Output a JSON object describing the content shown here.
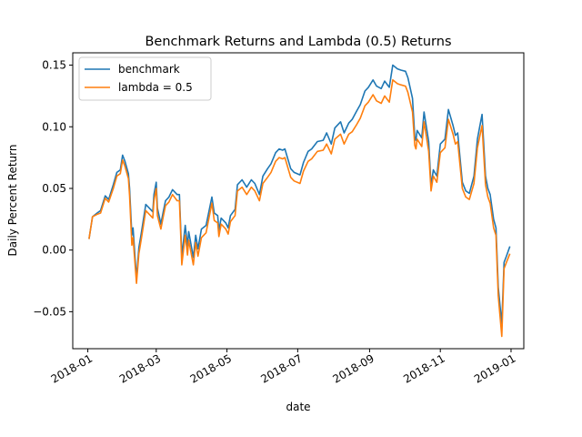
{
  "chart_data": {
    "type": "line",
    "title": "Benchmark Returns and Lambda (0.5) Returns",
    "xlabel": "date",
    "ylabel": "Daily Percent Return",
    "xlim": [
      "2017-12-19",
      "2019-01-12"
    ],
    "ylim": [
      -0.08,
      0.16
    ],
    "x_ticks": [
      {
        "label": "2018-01",
        "date": "2018-01-01"
      },
      {
        "label": "2018-03",
        "date": "2018-03-01"
      },
      {
        "label": "2018-05",
        "date": "2018-05-01"
      },
      {
        "label": "2018-07",
        "date": "2018-07-01"
      },
      {
        "label": "2018-09",
        "date": "2018-09-01"
      },
      {
        "label": "2018-11",
        "date": "2018-11-01"
      },
      {
        "label": "2019-01",
        "date": "2019-01-01"
      }
    ],
    "y_ticks": [
      {
        "label": "−0.05",
        "value": -0.05
      },
      {
        "label": "0.00",
        "value": 0.0
      },
      {
        "label": "0.05",
        "value": 0.05
      },
      {
        "label": "0.10",
        "value": 0.1
      },
      {
        "label": "0.15",
        "value": 0.15
      }
    ],
    "grid": false,
    "legend_position": "top-left",
    "series": [
      {
        "name": "benchmark",
        "color": "#1f77b4",
        "points": [
          [
            "2018-01-02",
            0.009
          ],
          [
            "2018-01-05",
            0.027
          ],
          [
            "2018-01-09",
            0.03
          ],
          [
            "2018-01-12",
            0.032
          ],
          [
            "2018-01-16",
            0.044
          ],
          [
            "2018-01-19",
            0.041
          ],
          [
            "2018-01-23",
            0.053
          ],
          [
            "2018-01-26",
            0.063
          ],
          [
            "2018-01-29",
            0.065
          ],
          [
            "2018-01-31",
            0.077
          ],
          [
            "2018-02-02",
            0.072
          ],
          [
            "2018-02-05",
            0.062
          ],
          [
            "2018-02-06",
            0.05
          ],
          [
            "2018-02-08",
            0.012
          ],
          [
            "2018-02-09",
            0.018
          ],
          [
            "2018-02-12",
            -0.023
          ],
          [
            "2018-02-14",
            0.002
          ],
          [
            "2018-02-16",
            0.013
          ],
          [
            "2018-02-20",
            0.037
          ],
          [
            "2018-02-23",
            0.034
          ],
          [
            "2018-02-26",
            0.031
          ],
          [
            "2018-02-27",
            0.045
          ],
          [
            "2018-03-01",
            0.055
          ],
          [
            "2018-03-02",
            0.034
          ],
          [
            "2018-03-05",
            0.021
          ],
          [
            "2018-03-07",
            0.031
          ],
          [
            "2018-03-09",
            0.04
          ],
          [
            "2018-03-12",
            0.043
          ],
          [
            "2018-03-15",
            0.049
          ],
          [
            "2018-03-19",
            0.045
          ],
          [
            "2018-03-21",
            0.045
          ],
          [
            "2018-03-22",
            0.02
          ],
          [
            "2018-03-23",
            -0.005
          ],
          [
            "2018-03-26",
            0.02
          ],
          [
            "2018-03-28",
            0.003
          ],
          [
            "2018-03-29",
            0.015
          ],
          [
            "2018-04-02",
            -0.006
          ],
          [
            "2018-04-04",
            0.012
          ],
          [
            "2018-04-06",
            0.001
          ],
          [
            "2018-04-09",
            0.017
          ],
          [
            "2018-04-13",
            0.02
          ],
          [
            "2018-04-18",
            0.043
          ],
          [
            "2018-04-20",
            0.03
          ],
          [
            "2018-04-23",
            0.028
          ],
          [
            "2018-04-24",
            0.016
          ],
          [
            "2018-04-26",
            0.026
          ],
          [
            "2018-04-30",
            0.022
          ],
          [
            "2018-05-02",
            0.018
          ],
          [
            "2018-05-04",
            0.028
          ],
          [
            "2018-05-08",
            0.033
          ],
          [
            "2018-05-10",
            0.053
          ],
          [
            "2018-05-14",
            0.057
          ],
          [
            "2018-05-18",
            0.051
          ],
          [
            "2018-05-22",
            0.057
          ],
          [
            "2018-05-25",
            0.054
          ],
          [
            "2018-05-29",
            0.045
          ],
          [
            "2018-06-01",
            0.06
          ],
          [
            "2018-06-05",
            0.066
          ],
          [
            "2018-06-08",
            0.07
          ],
          [
            "2018-06-12",
            0.079
          ],
          [
            "2018-06-15",
            0.082
          ],
          [
            "2018-06-18",
            0.081
          ],
          [
            "2018-06-20",
            0.082
          ],
          [
            "2018-06-25",
            0.066
          ],
          [
            "2018-06-28",
            0.063
          ],
          [
            "2018-07-03",
            0.061
          ],
          [
            "2018-07-06",
            0.071
          ],
          [
            "2018-07-10",
            0.08
          ],
          [
            "2018-07-13",
            0.082
          ],
          [
            "2018-07-18",
            0.088
          ],
          [
            "2018-07-23",
            0.089
          ],
          [
            "2018-07-26",
            0.095
          ],
          [
            "2018-07-30",
            0.086
          ],
          [
            "2018-08-02",
            0.099
          ],
          [
            "2018-08-07",
            0.104
          ],
          [
            "2018-08-10",
            0.095
          ],
          [
            "2018-08-14",
            0.103
          ],
          [
            "2018-08-17",
            0.106
          ],
          [
            "2018-08-21",
            0.113
          ],
          [
            "2018-08-24",
            0.118
          ],
          [
            "2018-08-28",
            0.129
          ],
          [
            "2018-08-31",
            0.132
          ],
          [
            "2018-09-04",
            0.138
          ],
          [
            "2018-09-07",
            0.133
          ],
          [
            "2018-09-11",
            0.131
          ],
          [
            "2018-09-14",
            0.137
          ],
          [
            "2018-09-18",
            0.132
          ],
          [
            "2018-09-21",
            0.15
          ],
          [
            "2018-09-25",
            0.147
          ],
          [
            "2018-09-28",
            0.146
          ],
          [
            "2018-10-02",
            0.145
          ],
          [
            "2018-10-04",
            0.14
          ],
          [
            "2018-10-08",
            0.123
          ],
          [
            "2018-10-10",
            0.092
          ],
          [
            "2018-10-11",
            0.089
          ],
          [
            "2018-10-12",
            0.097
          ],
          [
            "2018-10-16",
            0.091
          ],
          [
            "2018-10-18",
            0.112
          ],
          [
            "2018-10-22",
            0.088
          ],
          [
            "2018-10-24",
            0.052
          ],
          [
            "2018-10-26",
            0.065
          ],
          [
            "2018-10-29",
            0.06
          ],
          [
            "2018-11-01",
            0.086
          ],
          [
            "2018-11-05",
            0.09
          ],
          [
            "2018-11-08",
            0.114
          ],
          [
            "2018-11-12",
            0.101
          ],
          [
            "2018-11-14",
            0.093
          ],
          [
            "2018-11-16",
            0.095
          ],
          [
            "2018-11-20",
            0.055
          ],
          [
            "2018-11-23",
            0.048
          ],
          [
            "2018-11-26",
            0.046
          ],
          [
            "2018-11-30",
            0.06
          ],
          [
            "2018-12-03",
            0.09
          ],
          [
            "2018-12-05",
            0.1
          ],
          [
            "2018-12-07",
            0.11
          ],
          [
            "2018-12-10",
            0.06
          ],
          [
            "2018-12-12",
            0.05
          ],
          [
            "2018-12-14",
            0.045
          ],
          [
            "2018-12-17",
            0.025
          ],
          [
            "2018-12-19",
            0.018
          ],
          [
            "2018-12-21",
            -0.03
          ],
          [
            "2018-12-24",
            -0.06
          ],
          [
            "2018-12-26",
            -0.01
          ],
          [
            "2018-12-28",
            -0.005
          ],
          [
            "2018-12-31",
            0.003
          ]
        ]
      },
      {
        "name": "lambda = 0.5",
        "color": "#ff7f0e",
        "points": [
          [
            "2018-01-02",
            0.009
          ],
          [
            "2018-01-05",
            0.027
          ],
          [
            "2018-01-09",
            0.029
          ],
          [
            "2018-01-12",
            0.03
          ],
          [
            "2018-01-16",
            0.042
          ],
          [
            "2018-01-19",
            0.039
          ],
          [
            "2018-01-23",
            0.05
          ],
          [
            "2018-01-26",
            0.06
          ],
          [
            "2018-01-29",
            0.062
          ],
          [
            "2018-01-31",
            0.073
          ],
          [
            "2018-02-02",
            0.068
          ],
          [
            "2018-02-05",
            0.058
          ],
          [
            "2018-02-06",
            0.044
          ],
          [
            "2018-02-08",
            0.004
          ],
          [
            "2018-02-09",
            0.01
          ],
          [
            "2018-02-12",
            -0.027
          ],
          [
            "2018-02-14",
            -0.003
          ],
          [
            "2018-02-16",
            0.008
          ],
          [
            "2018-02-20",
            0.032
          ],
          [
            "2018-02-23",
            0.029
          ],
          [
            "2018-02-26",
            0.026
          ],
          [
            "2018-02-27",
            0.04
          ],
          [
            "2018-03-01",
            0.05
          ],
          [
            "2018-03-02",
            0.028
          ],
          [
            "2018-03-05",
            0.017
          ],
          [
            "2018-03-07",
            0.027
          ],
          [
            "2018-03-09",
            0.036
          ],
          [
            "2018-03-12",
            0.039
          ],
          [
            "2018-03-15",
            0.045
          ],
          [
            "2018-03-19",
            0.04
          ],
          [
            "2018-03-21",
            0.04
          ],
          [
            "2018-03-22",
            0.015
          ],
          [
            "2018-03-23",
            -0.012
          ],
          [
            "2018-03-26",
            0.012
          ],
          [
            "2018-03-28",
            -0.004
          ],
          [
            "2018-03-29",
            0.008
          ],
          [
            "2018-04-02",
            -0.012
          ],
          [
            "2018-04-04",
            0.006
          ],
          [
            "2018-04-06",
            -0.005
          ],
          [
            "2018-04-09",
            0.01
          ],
          [
            "2018-04-13",
            0.014
          ],
          [
            "2018-04-18",
            0.038
          ],
          [
            "2018-04-20",
            0.024
          ],
          [
            "2018-04-23",
            0.022
          ],
          [
            "2018-04-24",
            0.011
          ],
          [
            "2018-04-26",
            0.021
          ],
          [
            "2018-04-30",
            0.017
          ],
          [
            "2018-05-02",
            0.013
          ],
          [
            "2018-05-04",
            0.023
          ],
          [
            "2018-05-08",
            0.028
          ],
          [
            "2018-05-10",
            0.048
          ],
          [
            "2018-05-14",
            0.051
          ],
          [
            "2018-05-18",
            0.045
          ],
          [
            "2018-05-22",
            0.051
          ],
          [
            "2018-05-25",
            0.048
          ],
          [
            "2018-05-29",
            0.04
          ],
          [
            "2018-06-01",
            0.054
          ],
          [
            "2018-06-05",
            0.059
          ],
          [
            "2018-06-08",
            0.063
          ],
          [
            "2018-06-12",
            0.072
          ],
          [
            "2018-06-15",
            0.075
          ],
          [
            "2018-06-18",
            0.074
          ],
          [
            "2018-06-20",
            0.075
          ],
          [
            "2018-06-25",
            0.059
          ],
          [
            "2018-06-28",
            0.056
          ],
          [
            "2018-07-03",
            0.054
          ],
          [
            "2018-07-06",
            0.064
          ],
          [
            "2018-07-10",
            0.072
          ],
          [
            "2018-07-13",
            0.074
          ],
          [
            "2018-07-18",
            0.08
          ],
          [
            "2018-07-23",
            0.081
          ],
          [
            "2018-07-26",
            0.086
          ],
          [
            "2018-07-30",
            0.078
          ],
          [
            "2018-08-02",
            0.09
          ],
          [
            "2018-08-07",
            0.094
          ],
          [
            "2018-08-10",
            0.086
          ],
          [
            "2018-08-14",
            0.094
          ],
          [
            "2018-08-17",
            0.096
          ],
          [
            "2018-08-21",
            0.102
          ],
          [
            "2018-08-24",
            0.107
          ],
          [
            "2018-08-28",
            0.117
          ],
          [
            "2018-08-31",
            0.12
          ],
          [
            "2018-09-04",
            0.126
          ],
          [
            "2018-09-07",
            0.121
          ],
          [
            "2018-09-11",
            0.119
          ],
          [
            "2018-09-14",
            0.125
          ],
          [
            "2018-09-18",
            0.12
          ],
          [
            "2018-09-21",
            0.138
          ],
          [
            "2018-09-25",
            0.135
          ],
          [
            "2018-09-28",
            0.134
          ],
          [
            "2018-10-02",
            0.133
          ],
          [
            "2018-10-04",
            0.128
          ],
          [
            "2018-10-08",
            0.112
          ],
          [
            "2018-10-10",
            0.085
          ],
          [
            "2018-10-11",
            0.082
          ],
          [
            "2018-10-12",
            0.09
          ],
          [
            "2018-10-16",
            0.084
          ],
          [
            "2018-10-18",
            0.104
          ],
          [
            "2018-10-22",
            0.08
          ],
          [
            "2018-10-24",
            0.048
          ],
          [
            "2018-10-26",
            0.06
          ],
          [
            "2018-10-29",
            0.055
          ],
          [
            "2018-11-01",
            0.079
          ],
          [
            "2018-11-05",
            0.083
          ],
          [
            "2018-11-08",
            0.106
          ],
          [
            "2018-11-12",
            0.094
          ],
          [
            "2018-11-14",
            0.086
          ],
          [
            "2018-11-16",
            0.088
          ],
          [
            "2018-11-20",
            0.05
          ],
          [
            "2018-11-23",
            0.043
          ],
          [
            "2018-11-26",
            0.041
          ],
          [
            "2018-11-30",
            0.054
          ],
          [
            "2018-12-03",
            0.083
          ],
          [
            "2018-12-05",
            0.092
          ],
          [
            "2018-12-07",
            0.101
          ],
          [
            "2018-12-10",
            0.053
          ],
          [
            "2018-12-12",
            0.043
          ],
          [
            "2018-12-14",
            0.038
          ],
          [
            "2018-12-17",
            0.018
          ],
          [
            "2018-12-19",
            0.012
          ],
          [
            "2018-12-21",
            -0.037
          ],
          [
            "2018-12-24",
            -0.07
          ],
          [
            "2018-12-26",
            -0.015
          ],
          [
            "2018-12-28",
            -0.01
          ],
          [
            "2018-12-31",
            -0.003
          ]
        ]
      }
    ]
  }
}
